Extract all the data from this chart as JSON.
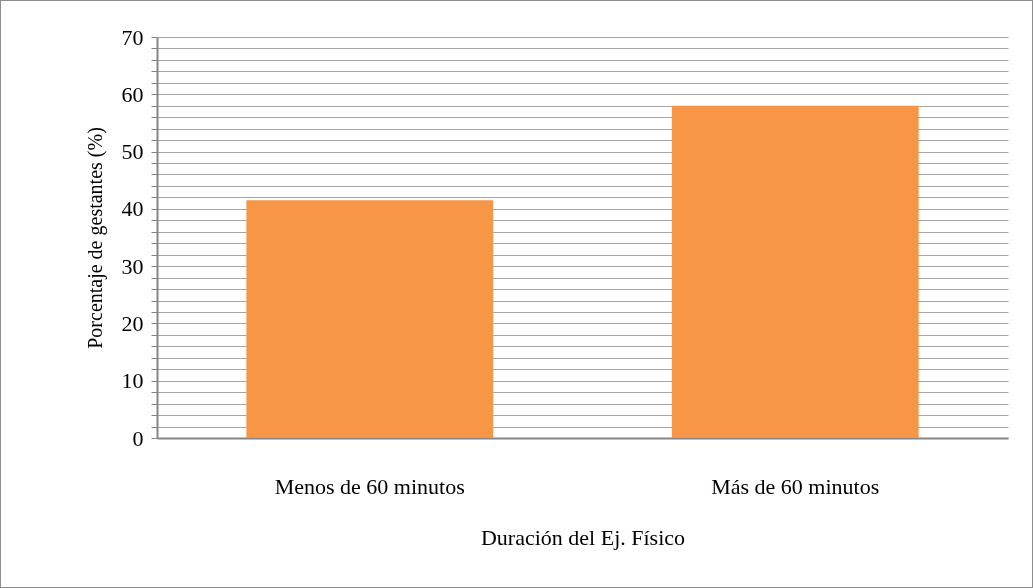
{
  "chart_data": {
    "type": "bar",
    "xlabel": "Duración del Ej. Físico",
    "ylabel": "Porcentaje de gestantes (%)",
    "categories": [
      "Menos de 60 minutos",
      "Más de 60 minutos"
    ],
    "values": [
      41.5,
      58
    ],
    "color": "#f79646",
    "ylim": [
      0,
      70
    ],
    "yticks": [
      0,
      {
        "value": 2,
        "label": null
      },
      {
        "value": 4,
        "label": null
      },
      {
        "value": 6,
        "label": null
      },
      {
        "value": 8,
        "label": null
      },
      10,
      {
        "value": 12,
        "label": null
      },
      {
        "value": 14,
        "label": null
      },
      {
        "value": 16,
        "label": null
      },
      {
        "value": 18,
        "label": null
      },
      20,
      {
        "value": 22,
        "label": null
      },
      {
        "value": 24,
        "label": null
      },
      {
        "value": 26,
        "label": null
      },
      {
        "value": 28,
        "label": null
      },
      30,
      {
        "value": 32,
        "label": null
      },
      {
        "value": 34,
        "label": null
      },
      {
        "value": 36,
        "label": null
      },
      {
        "value": 38,
        "label": null
      },
      40,
      {
        "value": 42,
        "label": null
      },
      {
        "value": 44,
        "label": null
      },
      {
        "value": 46,
        "label": null
      },
      {
        "value": 48,
        "label": null
      },
      50,
      {
        "value": 52,
        "label": null
      },
      {
        "value": 54,
        "label": null
      },
      {
        "value": 56,
        "label": null
      },
      {
        "value": 58,
        "label": null
      },
      60,
      {
        "value": 62,
        "label": null
      },
      {
        "value": 64,
        "label": null
      },
      {
        "value": 66,
        "label": null
      },
      {
        "value": 68,
        "label": null
      },
      70
    ],
    "grid": true
  }
}
